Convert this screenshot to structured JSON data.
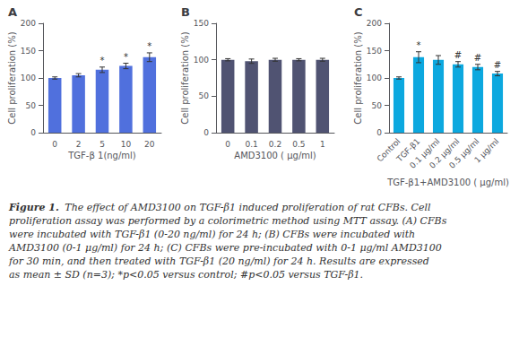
{
  "chart_data": [
    {
      "type": "bar",
      "title": "A",
      "categories": [
        "0",
        "2",
        "5",
        "10",
        "20"
      ],
      "values": [
        100,
        105,
        115,
        122,
        138
      ],
      "errors": [
        2,
        3,
        5,
        5,
        8
      ],
      "xlabel": "TGF-β 1(ng/ml)",
      "ylabel": "Cell proliferation (%)",
      "ylim": [
        0,
        200
      ],
      "yticks": [
        0,
        50,
        100,
        150,
        200
      ],
      "grid": false,
      "annotations": [
        {
          "category": "5",
          "text": "*"
        },
        {
          "category": "10",
          "text": "*"
        },
        {
          "category": "20",
          "text": "*"
        }
      ]
    },
    {
      "type": "bar",
      "title": "B",
      "categories": [
        "0",
        "0.1",
        "0.2",
        "0.5",
        "1"
      ],
      "values": [
        100,
        98,
        100,
        100,
        100
      ],
      "errors": [
        1.5,
        3,
        2,
        1.5,
        2
      ],
      "xlabel": "AMD3100 ( μg/ml)",
      "ylabel": "Cell proliferation (%)",
      "ylim": [
        0,
        150
      ],
      "yticks": [
        0,
        50,
        100,
        150
      ],
      "grid": false
    },
    {
      "type": "bar",
      "title": "C",
      "categories": [
        "Control",
        "TGF-β1",
        "0.1 μg/ml",
        "0.2 μg/ml",
        "0.5 μg/ml",
        "1 μg/ml"
      ],
      "values": [
        100,
        138,
        133,
        125,
        120,
        108
      ],
      "errors": [
        2,
        10,
        8,
        5,
        5,
        4
      ],
      "xlabel": "TGF-β1+AMD3100 ( μg/ml)",
      "ylabel": "Cell proliferation (%)",
      "ylim": [
        0,
        200
      ],
      "yticks": [
        0,
        50,
        100,
        150,
        200
      ],
      "grid": false,
      "annotations": [
        {
          "category": "TGF-β1",
          "text": "*"
        },
        {
          "category": "0.2 μg/ml",
          "text": "#"
        },
        {
          "category": "0.5 μg/ml",
          "text": "#"
        },
        {
          "category": "1 μg/ml",
          "text": "#"
        }
      ]
    }
  ],
  "caption_title": "Figure 1.",
  "caption": "The effect of AMD3100 on TGF-β1 induced proliferation of rat CFBs. Cell proliferation assay was performed by a colorimetric method using MTT assay. (A) CFBs were incubated with TGF-β1 (0-20 ng/ml) for 24 h; (B) CFBs were incubated with AMD3100 (0-1 μg/ml) for 24 h; (C) CFBs were pre-incubated with 0-1 μg/ml AMD3100 for 30 min, and then treated with TGF-β1 (20 ng/ml) for 24 h. Results are expressed as mean ± SD (n=3); *p<0.05 versus control; #p<0.05 versus TGF-β1."
}
